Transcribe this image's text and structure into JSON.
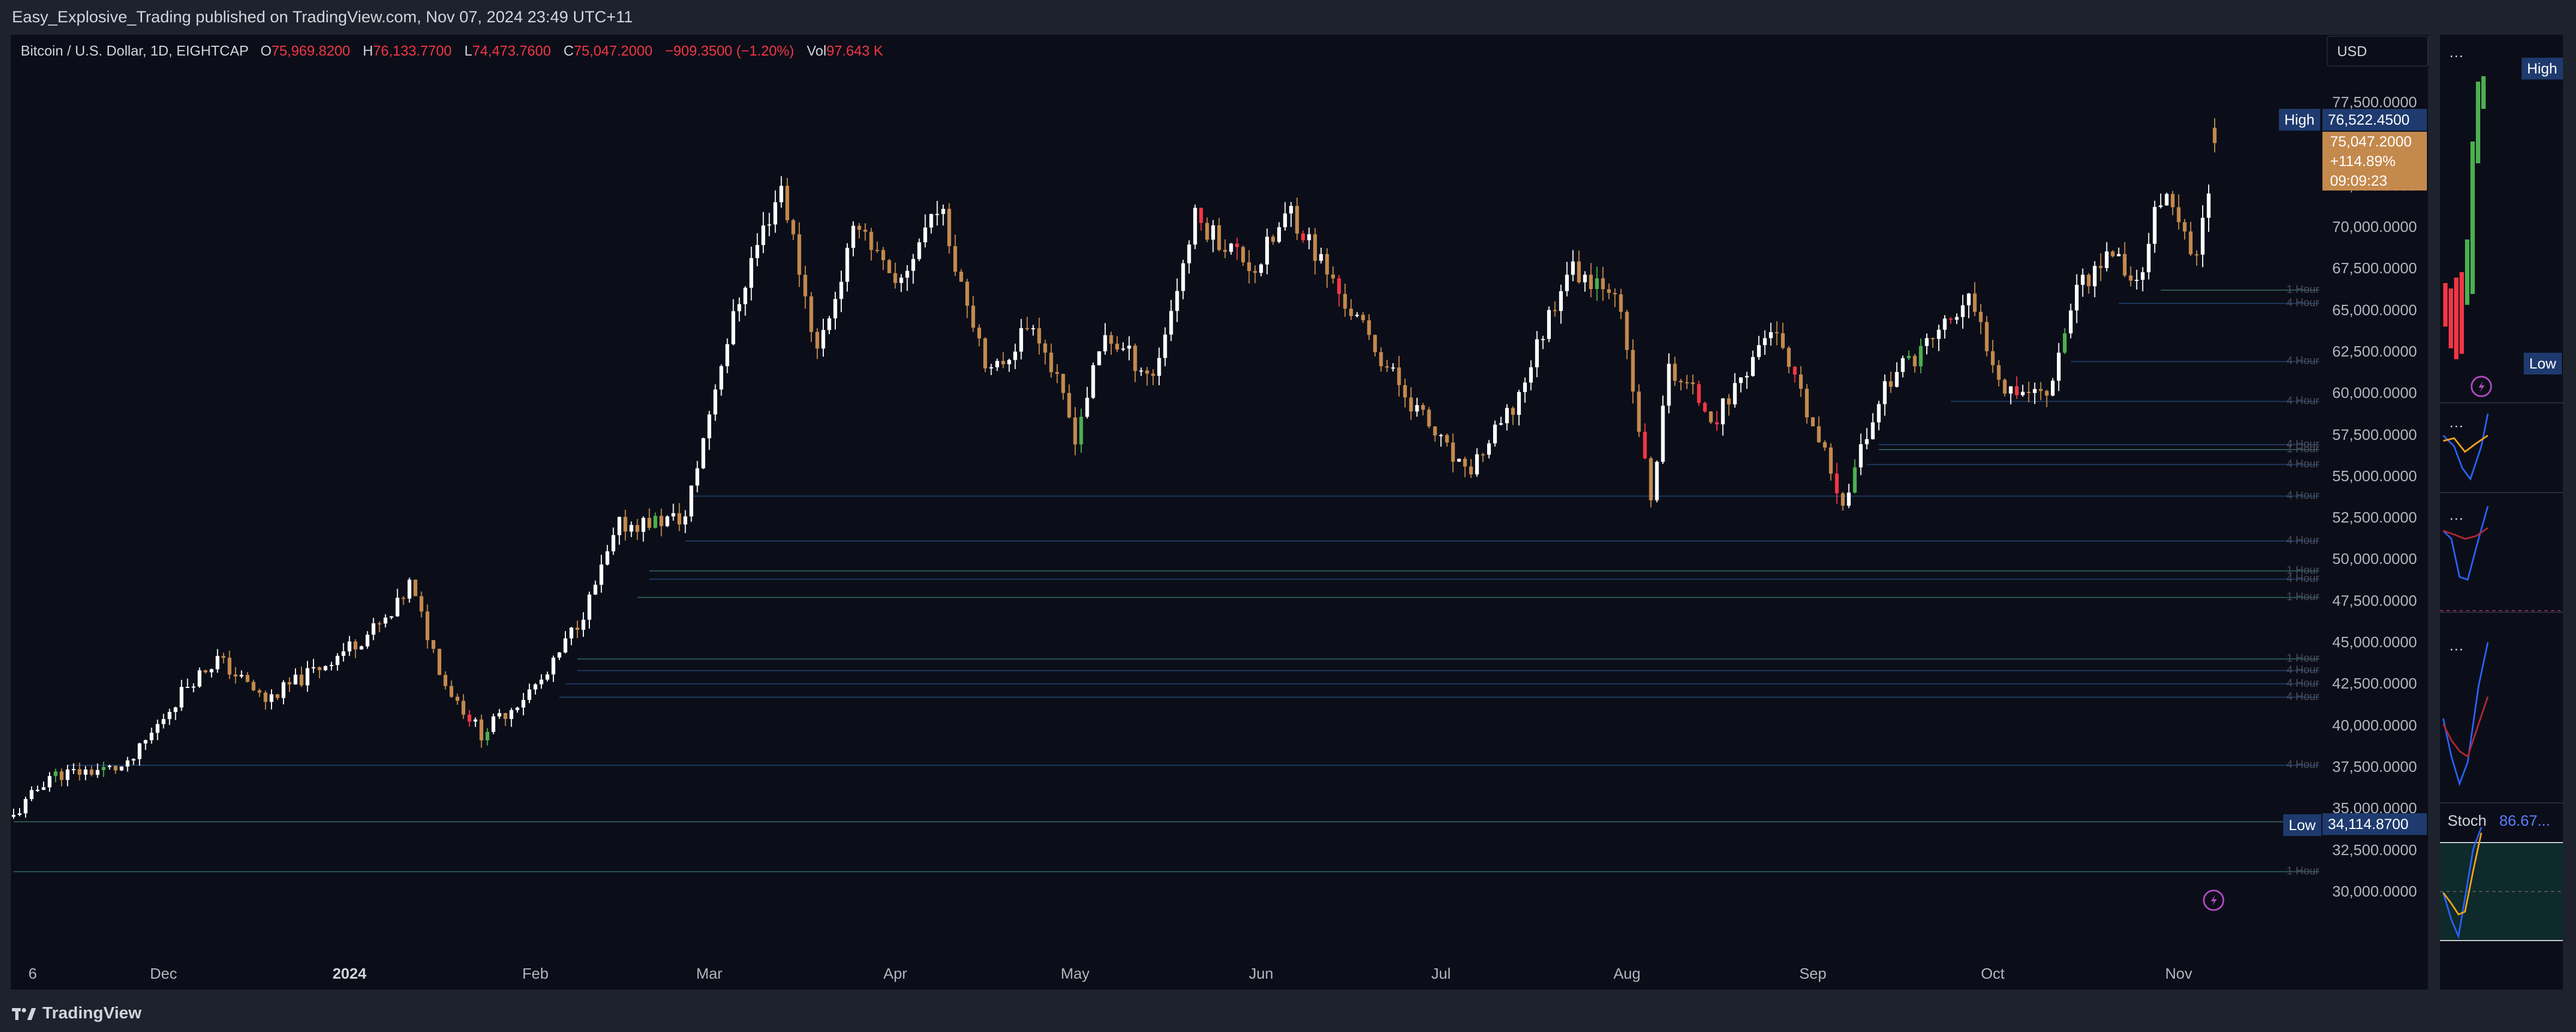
{
  "header": {
    "publish_text": "Easy_Explosive_Trading published on TradingView.com, Nov 07, 2024 23:49 UTC+11"
  },
  "legend": {
    "symbol": "Bitcoin / U.S. Dollar, 1D, EIGHTCAP",
    "o_label": "O",
    "o_value": "75,969.8200",
    "h_label": "H",
    "h_value": "76,133.7700",
    "l_label": "L",
    "l_value": "74,473.7600",
    "c_label": "C",
    "c_value": "75,047.2000",
    "change": "−909.3500 (−1.20%)",
    "vol_label": "Vol",
    "vol_value": "97.643 K"
  },
  "currency": "USD",
  "markers": {
    "high_label": "High",
    "high_value": "76,522.4500",
    "low_label": "Low",
    "low_value": "34,114.8700",
    "last_price": "75,047.2000",
    "last_change": "+114.89%",
    "countdown": "09:09:23"
  },
  "side_labels": {
    "high": "High",
    "low": "Low",
    "stoch_label": "Stoch",
    "stoch_value": "86.67..."
  },
  "footer": {
    "brand": "TradingView"
  },
  "colors": {
    "up": "#ffffff",
    "down": "#c4894d",
    "accent_up": "#4caf50",
    "accent_down": "#f23645",
    "level_blue": "#2962ff",
    "level_gray": "#787b86"
  },
  "chart_data": {
    "type": "candlestick",
    "x_ticks": [
      "6",
      "Dec",
      "2024",
      "Feb",
      "Mar",
      "Apr",
      "May",
      "Jun",
      "Jul",
      "Aug",
      "Sep",
      "Oct",
      "Nov"
    ],
    "y_ticks": [
      "77,500.0000",
      "75,000.0000",
      "72,500.0000",
      "70,000.0000",
      "67,500.0000",
      "65,000.0000",
      "62,500.0000",
      "60,000.0000",
      "57,500.0000",
      "55,000.0000",
      "52,500.0000",
      "50,000.0000",
      "47,500.0000",
      "45,000.0000",
      "42,500.0000",
      "40,000.0000",
      "37,500.0000",
      "35,000.0000",
      "32,500.0000",
      "30,000.0000"
    ],
    "ylim": [
      28000,
      80000
    ],
    "date_range": [
      "2023-11-06",
      "2024-11-07"
    ],
    "path": [
      [
        "2023-11-06",
        34500
      ],
      [
        "2023-11-12",
        37000
      ],
      [
        "2023-11-25",
        37500
      ],
      [
        "2023-12-05",
        42500
      ],
      [
        "2023-12-10",
        44000
      ],
      [
        "2023-12-18",
        41500
      ],
      [
        "2023-12-27",
        43500
      ],
      [
        "2024-01-08",
        46500
      ],
      [
        "2024-01-11",
        48500
      ],
      [
        "2024-01-17",
        42500
      ],
      [
        "2024-01-23",
        39500
      ],
      [
        "2024-02-03",
        43000
      ],
      [
        "2024-02-10",
        47500
      ],
      [
        "2024-02-15",
        52000
      ],
      [
        "2024-02-26",
        52500
      ],
      [
        "2024-03-03",
        62000
      ],
      [
        "2024-03-08",
        68000
      ],
      [
        "2024-03-13",
        72500
      ],
      [
        "2024-03-19",
        62500
      ],
      [
        "2024-03-26",
        70500
      ],
      [
        "2024-04-01",
        66000
      ],
      [
        "2024-04-08",
        71500
      ],
      [
        "2024-04-17",
        61000
      ],
      [
        "2024-04-24",
        64500
      ],
      [
        "2024-05-01",
        57500
      ],
      [
        "2024-05-06",
        63500
      ],
      [
        "2024-05-14",
        61000
      ],
      [
        "2024-05-21",
        70500
      ],
      [
        "2024-05-31",
        67500
      ],
      [
        "2024-06-06",
        71000
      ],
      [
        "2024-06-14",
        66000
      ],
      [
        "2024-06-24",
        60500
      ],
      [
        "2024-07-05",
        55000
      ],
      [
        "2024-07-13",
        59000
      ],
      [
        "2024-07-22",
        67500
      ],
      [
        "2024-07-30",
        66500
      ],
      [
        "2024-08-05",
        53500
      ],
      [
        "2024-08-08",
        61500
      ],
      [
        "2024-08-16",
        58500
      ],
      [
        "2024-08-25",
        64000
      ],
      [
        "2024-09-06",
        53500
      ],
      [
        "2024-09-13",
        60500
      ],
      [
        "2024-09-27",
        65500
      ],
      [
        "2024-10-03",
        60500
      ],
      [
        "2024-10-10",
        60000
      ],
      [
        "2024-10-15",
        66500
      ],
      [
        "2024-10-21",
        68500
      ],
      [
        "2024-10-25",
        66500
      ],
      [
        "2024-10-29",
        72000
      ],
      [
        "2024-11-04",
        67800
      ],
      [
        "2024-11-07",
        75047
      ]
    ],
    "high": {
      "date": "2024-11-07",
      "value": 76522.45
    },
    "low": {
      "date": "2023-11-06",
      "value": 34114.87
    },
    "levels": [
      {
        "label": "1 Hour",
        "price": 66200,
        "start": "2024-10-29"
      },
      {
        "label": "4 Hour",
        "price": 65400,
        "start": "2024-10-22"
      },
      {
        "label": "4 Hour",
        "price": 61900,
        "start": "2024-10-14"
      },
      {
        "label": "4 Hour",
        "price": 59500,
        "start": "2024-09-24"
      },
      {
        "label": "4 Hour",
        "price": 56900,
        "start": "2024-09-12"
      },
      {
        "label": "1 Hour",
        "price": 56600,
        "start": "2024-09-12"
      },
      {
        "label": "4 Hour",
        "price": 55700,
        "start": "2024-09-10"
      },
      {
        "label": "4 Hour",
        "price": 53800,
        "start": "2024-02-27"
      },
      {
        "label": "4 Hour",
        "price": 51100,
        "start": "2024-02-26"
      },
      {
        "label": "1 Hour",
        "price": 49300,
        "start": "2024-02-20"
      },
      {
        "label": "4 Hour",
        "price": 48800,
        "start": "2024-02-20"
      },
      {
        "label": "1 Hour",
        "price": 47700,
        "start": "2024-02-18"
      },
      {
        "label": "1 Hour",
        "price": 44000,
        "start": "2024-02-08"
      },
      {
        "label": "4 Hour",
        "price": 43300,
        "start": "2024-02-08"
      },
      {
        "label": "4 Hour",
        "price": 42500,
        "start": "2024-02-06"
      },
      {
        "label": "4 Hour",
        "price": 41700,
        "start": "2024-02-05"
      },
      {
        "label": "4 Hour",
        "price": 37600,
        "start": "2023-11-15"
      },
      {
        "label": "1 Hour",
        "price": 34200,
        "start": "2023-11-06"
      },
      {
        "label": "1 Hour",
        "price": 31200,
        "start": "2023-11-06"
      }
    ],
    "stoch": {
      "value": 86.67
    }
  }
}
